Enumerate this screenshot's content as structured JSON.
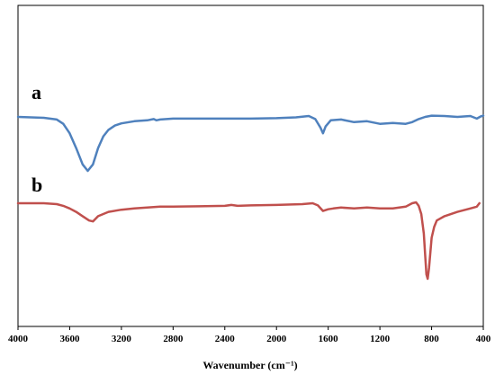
{
  "chart_data": {
    "type": "line",
    "xlabel": "Wavenumber (cm⁻¹)",
    "xlim": [
      4000,
      400
    ],
    "xticks": [
      4000,
      3600,
      3200,
      2800,
      2400,
      2000,
      1600,
      1200,
      800,
      400
    ],
    "grid": false,
    "legend": "none",
    "series": [
      {
        "name": "a",
        "color": "#4f81bd",
        "x": [
          4000,
          3900,
          3800,
          3700,
          3650,
          3600,
          3550,
          3500,
          3460,
          3420,
          3380,
          3340,
          3300,
          3250,
          3200,
          3100,
          3000,
          2950,
          2930,
          2900,
          2800,
          2600,
          2400,
          2200,
          2000,
          1850,
          1750,
          1700,
          1660,
          1640,
          1620,
          1580,
          1500,
          1400,
          1300,
          1200,
          1100,
          1000,
          950,
          900,
          850,
          800,
          700,
          600,
          500,
          450,
          420,
          400
        ],
        "y": [
          0.0,
          -0.01,
          -0.02,
          -0.06,
          -0.16,
          -0.38,
          -0.72,
          -1.1,
          -1.25,
          -1.1,
          -0.72,
          -0.45,
          -0.3,
          -0.2,
          -0.15,
          -0.1,
          -0.08,
          -0.05,
          -0.08,
          -0.06,
          -0.04,
          -0.04,
          -0.04,
          -0.04,
          -0.03,
          -0.01,
          0.02,
          -0.05,
          -0.25,
          -0.38,
          -0.22,
          -0.08,
          -0.06,
          -0.12,
          -0.1,
          -0.16,
          -0.14,
          -0.16,
          -0.12,
          -0.05,
          0.0,
          0.03,
          0.02,
          0.0,
          0.02,
          -0.04,
          0.01,
          0.03
        ]
      },
      {
        "name": "b",
        "color": "#c0504d",
        "x": [
          4000,
          3900,
          3800,
          3700,
          3650,
          3600,
          3550,
          3500,
          3450,
          3420,
          3380,
          3300,
          3200,
          3100,
          3000,
          2900,
          2800,
          2600,
          2400,
          2350,
          2300,
          2200,
          2000,
          1800,
          1720,
          1680,
          1640,
          1600,
          1560,
          1500,
          1400,
          1300,
          1200,
          1100,
          1000,
          950,
          920,
          900,
          880,
          860,
          850,
          840,
          830,
          820,
          800,
          780,
          760,
          700,
          600,
          500,
          450,
          430
        ],
        "y": [
          0.0,
          0.0,
          0.0,
          -0.02,
          -0.06,
          -0.12,
          -0.2,
          -0.3,
          -0.4,
          -0.42,
          -0.3,
          -0.2,
          -0.15,
          -0.12,
          -0.1,
          -0.08,
          -0.08,
          -0.07,
          -0.06,
          -0.04,
          -0.06,
          -0.05,
          -0.04,
          -0.02,
          0.0,
          -0.05,
          -0.18,
          -0.14,
          -0.12,
          -0.1,
          -0.12,
          -0.1,
          -0.12,
          -0.12,
          -0.08,
          0.0,
          0.02,
          -0.06,
          -0.25,
          -0.7,
          -1.2,
          -1.65,
          -1.75,
          -1.5,
          -0.8,
          -0.55,
          -0.4,
          -0.3,
          -0.2,
          -0.12,
          -0.08,
          0.0
        ]
      }
    ]
  }
}
